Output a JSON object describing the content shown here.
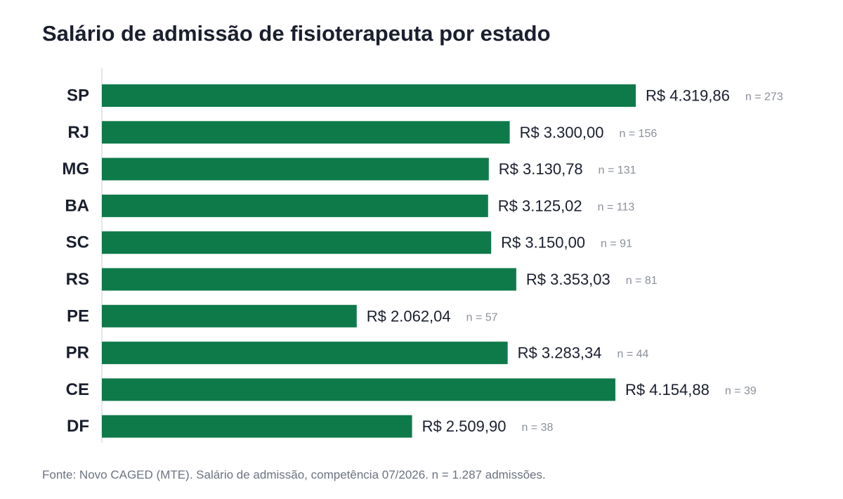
{
  "chart_data": {
    "type": "bar",
    "orientation": "horizontal",
    "title": "Salário de admissão de fisioterapeuta por estado",
    "categories": [
      "SP",
      "RJ",
      "MG",
      "BA",
      "SC",
      "RS",
      "PE",
      "PR",
      "CE",
      "DF"
    ],
    "values": [
      4319.86,
      3300.0,
      3130.78,
      3125.02,
      3150.0,
      3353.03,
      2062.04,
      3283.34,
      4154.88,
      2509.9
    ],
    "value_labels": [
      "R$ 4.319,86",
      "R$ 3.300,00",
      "R$ 3.130,78",
      "R$ 3.125,02",
      "R$ 3.150,00",
      "R$ 3.353,03",
      "R$ 2.062,04",
      "R$ 3.283,34",
      "R$ 4.154,88",
      "R$ 2.509,90"
    ],
    "counts": [
      "n = 273",
      "n = 156",
      "n = 131",
      "n = 113",
      "n = 91",
      "n = 81",
      "n = 57",
      "n = 44",
      "n = 39",
      "n = 38"
    ],
    "xlim": [
      0,
      4319.86
    ],
    "bar_color": "#0e7a4a",
    "grid": false,
    "legend": "none"
  },
  "footnote": "Fonte: Novo CAGED (MTE). Salário de admissão, competência 07/2026. n = 1.287 admissões."
}
